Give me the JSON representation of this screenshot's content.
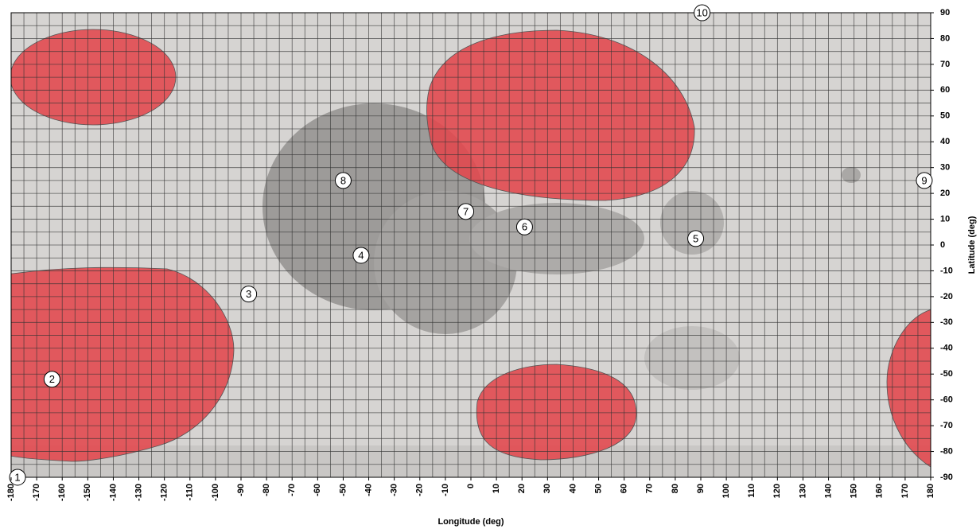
{
  "chart_data": {
    "type": "scatter",
    "xlabel": "Longitude (deg)",
    "ylabel": "Latitude (deg)",
    "xlim": [
      -180,
      180
    ],
    "ylim": [
      -90,
      90
    ],
    "xticks": [
      -180,
      -170,
      -160,
      -150,
      -140,
      -130,
      -120,
      -110,
      -100,
      -90,
      -80,
      -70,
      -60,
      -50,
      -40,
      -30,
      -20,
      -10,
      0,
      10,
      20,
      30,
      40,
      50,
      60,
      70,
      80,
      90,
      100,
      110,
      120,
      130,
      140,
      150,
      160,
      170,
      180
    ],
    "yticks": [
      -90,
      -80,
      -70,
      -60,
      -50,
      -40,
      -30,
      -20,
      -10,
      0,
      10,
      20,
      30,
      40,
      50,
      60,
      70,
      80,
      90
    ],
    "grid": true,
    "points": [
      {
        "label": "1",
        "x": -177.5,
        "y": -90
      },
      {
        "label": "2",
        "x": -164,
        "y": -52
      },
      {
        "label": "3",
        "x": -87,
        "y": -19
      },
      {
        "label": "4",
        "x": -43,
        "y": -4
      },
      {
        "label": "5",
        "x": 88,
        "y": 2.5
      },
      {
        "label": "6",
        "x": 21,
        "y": 7
      },
      {
        "label": "7",
        "x": -2,
        "y": 13
      },
      {
        "label": "8",
        "x": -50,
        "y": 25
      },
      {
        "label": "9",
        "x": 177.5,
        "y": 25
      },
      {
        "label": "10",
        "x": 90.5,
        "y": 90
      }
    ]
  }
}
